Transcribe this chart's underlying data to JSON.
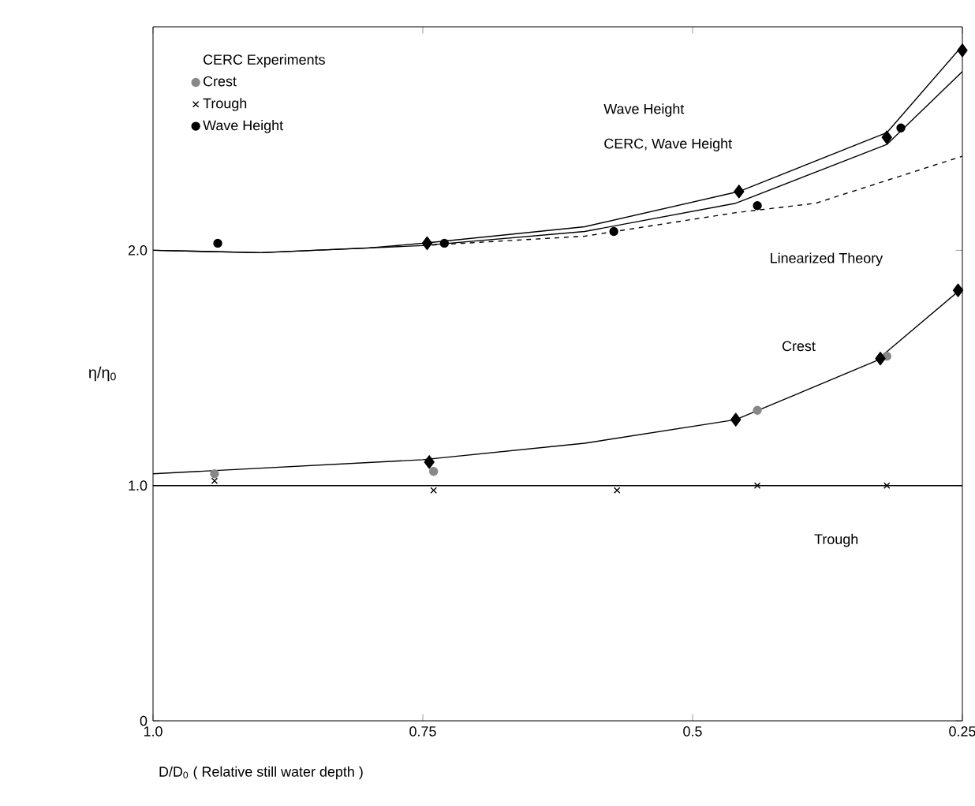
{
  "chart_data": {
    "type": "scatter",
    "xlabel": "D/D$_{0}$ ( Relative still water depth )",
    "ylabel": "η/η$_{0}$",
    "legend_title": "CERC Experiments",
    "legend": "top left",
    "xlim": [
      1.0,
      0.25
    ],
    "xticks": [
      {
        "value": 1.0,
        "label": "1.0"
      },
      0.75,
      0.5,
      0.25
    ],
    "ylim": [
      0,
      2.95
    ],
    "yticks": [
      0,
      {
        "value": 1,
        "label": "1.0"
      },
      {
        "value": 2,
        "label": "2.0"
      }
    ],
    "series": [
      {
        "type": "line",
        "color": "#000000",
        "marker": "none",
        "x": [
          1.0,
          0.9,
          0.8,
          0.75,
          0.6,
          0.457,
          0.32,
          0.25
        ],
        "values": [
          2.0,
          1.99,
          2.01,
          2.03,
          2.1,
          2.25,
          2.5,
          2.87
        ]
      },
      {
        "type": "line",
        "color": "#000000",
        "marker": "none",
        "x": [
          1.0,
          0.9,
          0.8,
          0.75,
          0.6,
          0.46,
          0.32,
          0.25
        ],
        "values": [
          2.0,
          1.99,
          2.01,
          2.02,
          2.08,
          2.2,
          2.45,
          2.76
        ]
      },
      {
        "type": "line",
        "color": "#000000",
        "marker": "none",
        "line_style": "dashed",
        "x": [
          0.75,
          0.6,
          0.46,
          0.386,
          0.25
        ],
        "values": [
          2.02,
          2.06,
          2.16,
          2.2,
          2.4
        ]
      },
      {
        "type": "line",
        "color": "#000000",
        "marker": "none",
        "x": [
          1.0,
          0.75,
          0.6,
          0.46,
          0.33,
          0.25
        ],
        "values": [
          1.05,
          1.11,
          1.18,
          1.28,
          1.53,
          1.84
        ]
      },
      {
        "type": "line",
        "color": "#000000",
        "marker": "none",
        "x": [
          1.0,
          0.25
        ],
        "values": [
          1.0,
          1.0
        ]
      },
      {
        "name": "Crest",
        "color": "#888888",
        "marker": "circle",
        "x": [
          0.943,
          0.74,
          0.44,
          0.32
        ],
        "values": [
          1.05,
          1.06,
          1.32,
          1.55
        ]
      },
      {
        "name": "Trough",
        "color": "#000000",
        "marker": "cross",
        "x": [
          0.943,
          0.74,
          0.57,
          0.44,
          0.32
        ],
        "values": [
          1.02,
          0.98,
          0.98,
          1.0,
          1.0
        ]
      },
      {
        "name": "Wave Height",
        "color": "#000000",
        "marker": "circle",
        "x": [
          0.94,
          0.73,
          0.573,
          0.44,
          0.307
        ],
        "values": [
          2.03,
          2.03,
          2.08,
          2.19,
          2.52
        ]
      },
      {
        "color": "#000000",
        "marker": "diamond",
        "x": [
          0.746,
          0.457,
          0.32,
          0.25,
          0.744,
          0.46,
          0.326,
          0.254
        ],
        "values": [
          2.03,
          2.25,
          2.48,
          2.85,
          1.1,
          1.28,
          1.54,
          1.83
        ]
      }
    ],
    "annotations": [
      "Wave Height",
      "CERC, Wave Height",
      "Linearized Theory",
      "Crest",
      "Trough"
    ]
  }
}
